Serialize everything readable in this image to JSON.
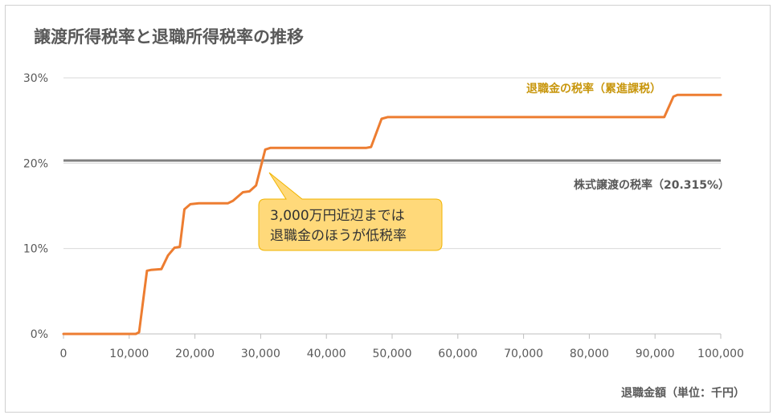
{
  "chart_data": {
    "type": "line",
    "title": "譲渡所得税率と退職所得税率の推移",
    "xlabel": "退職金額（単位：千円）",
    "ylabel": "",
    "xlim": [
      0,
      100000
    ],
    "ylim": [
      0,
      30
    ],
    "x_ticks": [
      "0",
      "10,000",
      "20,000",
      "30,000",
      "40,000",
      "50,000",
      "60,000",
      "70,000",
      "80,000",
      "90,000",
      "100,000"
    ],
    "y_ticks": [
      "0%",
      "10%",
      "20%",
      "30%"
    ],
    "grid": true,
    "series": [
      {
        "name": "退職金の税率（累進課税）",
        "color": "#ed7d31",
        "x": [
          0,
          11000,
          11500,
          12700,
          13300,
          14900,
          15900,
          16900,
          17700,
          18400,
          19300,
          20600,
          25000,
          25800,
          27300,
          28300,
          29300,
          30700,
          31500,
          46100,
          46800,
          48400,
          49300,
          90600,
          91400,
          92800,
          93400,
          100000
        ],
        "y": [
          0,
          0,
          0.2,
          7.4,
          7.5,
          7.6,
          9.2,
          10.1,
          10.2,
          14.6,
          15.2,
          15.3,
          15.3,
          15.6,
          16.6,
          16.7,
          17.4,
          21.6,
          21.8,
          21.8,
          21.9,
          25.2,
          25.4,
          25.4,
          25.4,
          27.8,
          28.0,
          28.0
        ]
      },
      {
        "name": "株式譲渡の税率（20.315%）",
        "color": "#808080",
        "x": [
          0,
          100000
        ],
        "y": [
          20.315,
          20.315
        ]
      }
    ],
    "annotations": {
      "retirement_label": "退職金の税率（累進課税）",
      "stock_label": "株式譲渡の税率（20.315%）",
      "callout_line1": "3,000万円近辺までは",
      "callout_line2": "退職金のほうが低税率"
    },
    "colors": {
      "retirement": "#ed7d31",
      "stock": "#808080",
      "callout_fill": "#ffd97a",
      "callout_border": "#f0b400",
      "retirement_label": "#c8960c"
    }
  }
}
